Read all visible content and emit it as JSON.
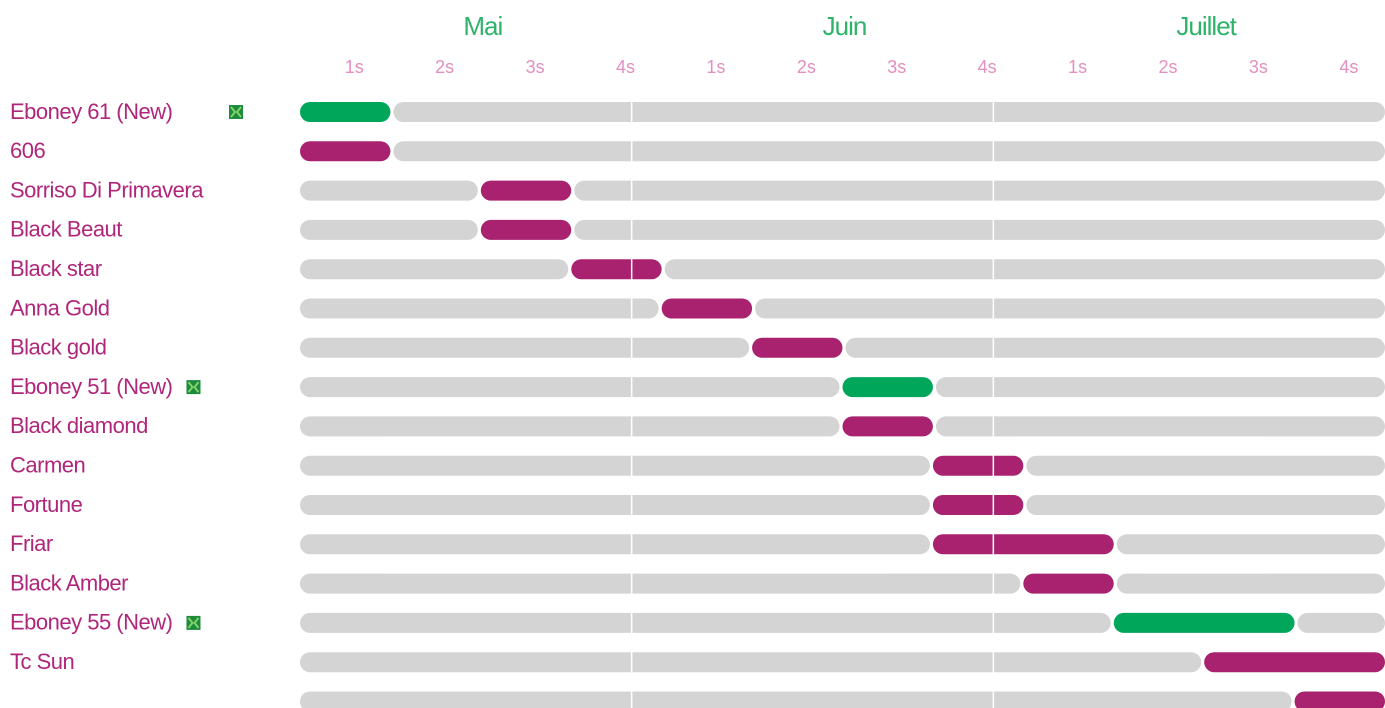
{
  "chart_data": {
    "type": "gantt",
    "months": [
      "Mai",
      "Juin",
      "Juillet"
    ],
    "weeks": [
      "1s",
      "2s",
      "3s",
      "4s",
      "1s",
      "2s",
      "3s",
      "4s",
      "1s",
      "2s",
      "3s",
      "4s"
    ],
    "xlim": [
      0,
      12
    ],
    "track_color": "#d4d4d4",
    "rows": [
      {
        "name": "Eboney 61 (New)",
        "icon": true,
        "start": 0,
        "end": 1,
        "color": "#00a65a"
      },
      {
        "name": "606",
        "start": 0,
        "end": 1,
        "color": "#a8226f"
      },
      {
        "name": "Sorriso Di Primavera",
        "start": 2,
        "end": 3,
        "color": "#a8226f"
      },
      {
        "name": "Black Beaut",
        "start": 2,
        "end": 3,
        "color": "#a8226f"
      },
      {
        "name": "Black star",
        "start": 3,
        "end": 4,
        "color": "#a8226f"
      },
      {
        "name": "Anna Gold",
        "start": 4,
        "end": 5,
        "color": "#a8226f"
      },
      {
        "name": "Black gold",
        "start": 5,
        "end": 6,
        "color": "#a8226f"
      },
      {
        "name": "Eboney 51 (New)",
        "icon": true,
        "start": 6,
        "end": 7,
        "color": "#00a65a"
      },
      {
        "name": "Black diamond",
        "start": 6,
        "end": 7,
        "color": "#a8226f"
      },
      {
        "name": "Carmen",
        "start": 7,
        "end": 8,
        "color": "#a8226f"
      },
      {
        "name": "Fortune",
        "start": 7,
        "end": 8,
        "color": "#a8226f"
      },
      {
        "name": "Friar",
        "start": 7,
        "end": 9,
        "color": "#a8226f"
      },
      {
        "name": "Black Amber",
        "start": 8,
        "end": 9,
        "color": "#a8226f"
      },
      {
        "name": "Eboney 55 (New)",
        "icon": true,
        "start": 9,
        "end": 11,
        "color": "#00a65a"
      },
      {
        "name": "Tc Sun",
        "start": 10,
        "end": 12,
        "color": "#a8226f"
      },
      {
        "name": null,
        "start": 11,
        "end": 12,
        "color": "#a8226f"
      }
    ]
  }
}
